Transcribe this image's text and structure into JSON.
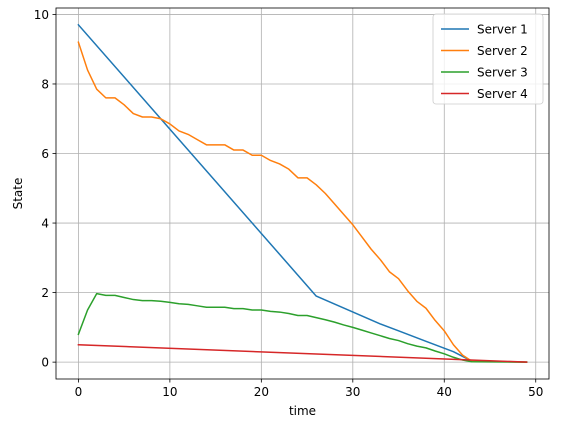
{
  "chart_data": {
    "type": "line",
    "xlabel": "time",
    "ylabel": "State",
    "xlim": [
      -2.45,
      51.45
    ],
    "ylim": [
      -0.485,
      10.185
    ],
    "xticks": [
      0,
      10,
      20,
      30,
      40,
      50
    ],
    "yticks": [
      0,
      2,
      4,
      6,
      8,
      10
    ],
    "grid": true,
    "legend_position": "top-right",
    "series": [
      {
        "name": "Server 1",
        "color": "#1f77b4",
        "x": [
          0,
          26,
          33,
          35,
          38,
          41,
          43,
          49
        ],
        "y": [
          9.7,
          1.9,
          1.1,
          0.9,
          0.6,
          0.3,
          0.03,
          0.0
        ]
      },
      {
        "name": "Server 2",
        "color": "#ff7f0e",
        "x": [
          0,
          1,
          2,
          3,
          4,
          5,
          6,
          7,
          8,
          9,
          10,
          11,
          12,
          13,
          14,
          15,
          16,
          17,
          18,
          19,
          20,
          21,
          22,
          23,
          24,
          25,
          26,
          27,
          28,
          29,
          30,
          31,
          32,
          33,
          34,
          35,
          36,
          37,
          38,
          39,
          40,
          41,
          42,
          43,
          49
        ],
        "y": [
          9.2,
          8.4,
          7.85,
          7.6,
          7.6,
          7.4,
          7.15,
          7.05,
          7.05,
          7.0,
          6.85,
          6.65,
          6.55,
          6.4,
          6.25,
          6.25,
          6.25,
          6.1,
          6.1,
          5.95,
          5.95,
          5.8,
          5.7,
          5.55,
          5.3,
          5.3,
          5.1,
          4.85,
          4.55,
          4.25,
          3.95,
          3.6,
          3.25,
          2.95,
          2.6,
          2.4,
          2.05,
          1.75,
          1.55,
          1.2,
          0.9,
          0.5,
          0.2,
          0.03,
          0.0
        ]
      },
      {
        "name": "Server 3",
        "color": "#2ca02c",
        "x": [
          0,
          1,
          2,
          3,
          4,
          5,
          6,
          7,
          8,
          9,
          10,
          11,
          12,
          13,
          14,
          15,
          16,
          17,
          18,
          19,
          20,
          21,
          22,
          23,
          24,
          25,
          26,
          27,
          28,
          29,
          30,
          31,
          32,
          33,
          34,
          35,
          36,
          37,
          38,
          39,
          40,
          41,
          42,
          43,
          49
        ],
        "y": [
          0.8,
          1.5,
          1.97,
          1.92,
          1.92,
          1.86,
          1.8,
          1.77,
          1.77,
          1.75,
          1.72,
          1.68,
          1.66,
          1.62,
          1.58,
          1.58,
          1.58,
          1.54,
          1.54,
          1.5,
          1.5,
          1.46,
          1.44,
          1.4,
          1.34,
          1.34,
          1.28,
          1.22,
          1.15,
          1.07,
          1.0,
          0.92,
          0.84,
          0.76,
          0.68,
          0.62,
          0.53,
          0.46,
          0.41,
          0.32,
          0.24,
          0.14,
          0.06,
          0.01,
          0.0
        ]
      },
      {
        "name": "Server 4",
        "color": "#d62728",
        "x": [
          0,
          49
        ],
        "y": [
          0.5,
          0.0
        ]
      }
    ]
  }
}
